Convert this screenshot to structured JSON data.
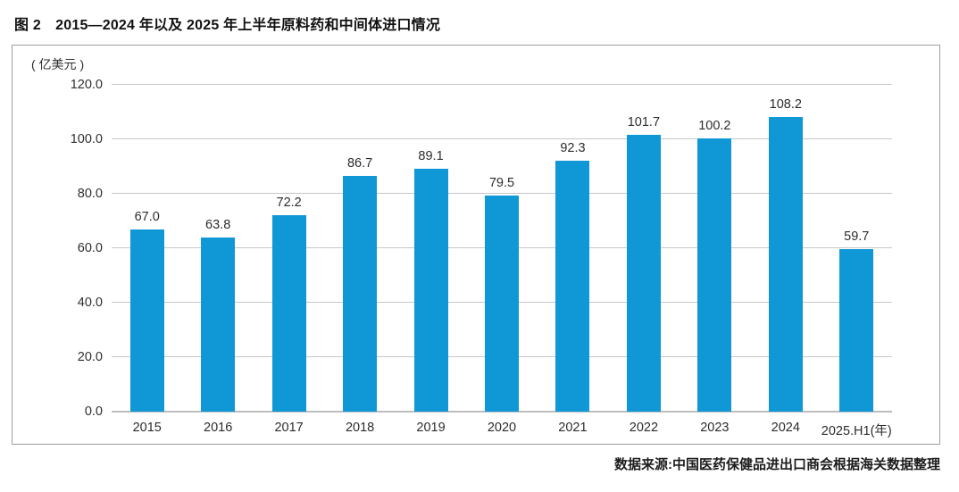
{
  "figure": {
    "title": "图 2　2015—2024 年以及 2025 年上半年原料药和中间体进口情况",
    "source_note": "数据来源:中国医药保健品进出口商会根据海关数据整理"
  },
  "chart_data": {
    "type": "bar",
    "title": "2015—2024 年以及 2025 年上半年原料药和中间体进口情况",
    "unit_label": "( 亿美元 )",
    "x_axis_unit": "( 年 )",
    "categories": [
      "2015",
      "2016",
      "2017",
      "2018",
      "2019",
      "2020",
      "2021",
      "2022",
      "2023",
      "2024",
      "2025.H1(年)"
    ],
    "values": [
      67.0,
      63.8,
      72.2,
      86.7,
      89.1,
      79.5,
      92.3,
      101.7,
      100.2,
      108.2,
      59.7
    ],
    "value_decimals": 1,
    "ylim": [
      0,
      120
    ],
    "ytick_step": 20,
    "ytick_labels": [
      "0.0",
      "20.0",
      "40.0",
      "60.0",
      "80.0",
      "100.0",
      "120.0"
    ],
    "grid": true,
    "legend": "none",
    "xlabel": "",
    "ylabel": "( 亿美元 )"
  },
  "colors": {
    "bar": "#0f97d6",
    "gridline": "#c7c7c7",
    "axis_line": "#bdbdbd",
    "frame_border": "#9f9f9f",
    "text": "#2c2c2c"
  }
}
